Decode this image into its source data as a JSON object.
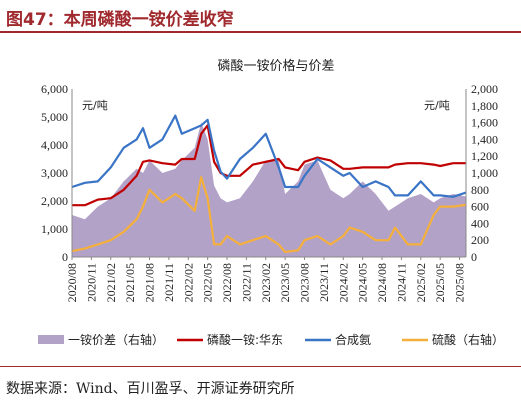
{
  "header": {
    "title": "图47：本周磷酸一铵价差收窄"
  },
  "source": "数据来源：Wind、百川盈孚、开源证券研究所",
  "colors": {
    "spread": "#b3a2c8",
    "map": "#c00000",
    "ammonia": "#3a74c6",
    "sulfuric": "#f5b03c",
    "accent": "#a0292e"
  },
  "chart_data": {
    "type": "line",
    "title": "磷酸一铵价格与价差",
    "left_unit": "元/吨",
    "right_unit": "元/吨",
    "ylim_left": [
      0,
      6000
    ],
    "ylim_right": [
      0,
      2000
    ],
    "left_ticks": [
      "0",
      "1,000",
      "2,000",
      "3,000",
      "4,000",
      "5,000",
      "6,000"
    ],
    "right_ticks": [
      "0",
      "200",
      "400",
      "600",
      "800",
      "1,000",
      "1,200",
      "1,400",
      "1,600",
      "1,800",
      "2,000"
    ],
    "x_range": [
      "2020-08",
      "2025-09"
    ],
    "x_ticks": [
      "2020/08",
      "2020/11",
      "2021/02",
      "2021/05",
      "2021/08",
      "2021/11",
      "2022/02",
      "2022/05",
      "2022/08",
      "2022/11",
      "2023/02",
      "2023/05",
      "2023/08",
      "2023/11",
      "2024/02",
      "2024/05",
      "2024/08",
      "2024/11",
      "2025/02",
      "2025/05",
      "2025/08"
    ],
    "x": [
      "2020-08",
      "2020-10",
      "2020-12",
      "2021-02",
      "2021-04",
      "2021-06",
      "2021-07",
      "2021-08",
      "2021-10",
      "2021-12",
      "2022-01",
      "2022-03",
      "2022-04",
      "2022-05",
      "2022-06",
      "2022-07",
      "2022-08",
      "2022-10",
      "2022-12",
      "2023-02",
      "2023-04",
      "2023-05",
      "2023-07",
      "2023-08",
      "2023-10",
      "2023-12",
      "2024-02",
      "2024-03",
      "2024-05",
      "2024-07",
      "2024-09",
      "2024-10",
      "2024-12",
      "2025-02",
      "2025-04",
      "2025-05",
      "2025-07",
      "2025-09"
    ],
    "series": [
      {
        "name": "一铵价差（右轴）",
        "kind": "area",
        "axis": "right",
        "values": [
          500,
          450,
          600,
          700,
          900,
          1050,
          1000,
          1150,
          1000,
          1050,
          1150,
          1300,
          1600,
          1400,
          850,
          700,
          650,
          700,
          900,
          1150,
          1150,
          750,
          900,
          1100,
          1150,
          800,
          700,
          750,
          900,
          750,
          550,
          600,
          700,
          750,
          650,
          700,
          750,
          720
        ]
      },
      {
        "name": "磷酸一铵:华东",
        "kind": "line",
        "axis": "left",
        "values": [
          1850,
          1850,
          2050,
          2100,
          2400,
          2900,
          3400,
          3450,
          3350,
          3300,
          3500,
          3500,
          4400,
          4700,
          3400,
          3000,
          2900,
          2900,
          3300,
          3400,
          3500,
          3200,
          3100,
          3400,
          3550,
          3450,
          3150,
          3150,
          3200,
          3200,
          3200,
          3300,
          3350,
          3350,
          3300,
          3250,
          3350,
          3350
        ]
      },
      {
        "name": "合成氨",
        "kind": "line",
        "axis": "left",
        "values": [
          2500,
          2650,
          2700,
          3200,
          3900,
          4200,
          4600,
          3900,
          4200,
          5050,
          4400,
          4600,
          4700,
          4900,
          3800,
          3050,
          2800,
          3500,
          3900,
          4400,
          3200,
          2500,
          2500,
          2900,
          3500,
          3200,
          2900,
          3000,
          2500,
          2700,
          2500,
          2200,
          2200,
          2700,
          2200,
          2200,
          2150,
          2300
        ]
      },
      {
        "name": "硫酸（右轴）",
        "kind": "line",
        "axis": "right",
        "values": [
          70,
          100,
          150,
          200,
          300,
          450,
          600,
          800,
          650,
          750,
          700,
          550,
          950,
          700,
          150,
          150,
          250,
          150,
          200,
          250,
          150,
          60,
          80,
          200,
          250,
          150,
          250,
          350,
          300,
          200,
          200,
          350,
          150,
          150,
          500,
          600,
          600,
          620
        ]
      }
    ]
  }
}
